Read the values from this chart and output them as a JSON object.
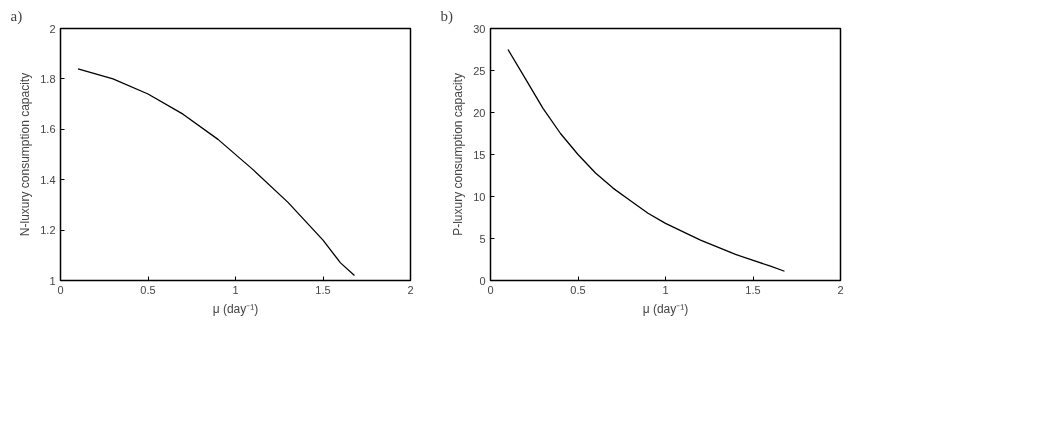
{
  "chart_data": [
    {
      "type": "line",
      "title": "a)",
      "xlabel": "μ (day⁻¹)",
      "ylabel": "N-luxury consumption capacity",
      "xlim": [
        0,
        2
      ],
      "xticks": [
        0,
        0.5,
        1,
        1.5,
        2
      ],
      "ylim": [
        1,
        2
      ],
      "yticks": [
        1,
        1.2,
        1.4,
        1.6,
        1.8,
        2
      ],
      "grid": false,
      "series": [
        {
          "color": "#000000",
          "x": [
            0.1,
            0.3,
            0.5,
            0.7,
            0.9,
            1.1,
            1.3,
            1.5,
            1.6,
            1.68
          ],
          "values": [
            1.84,
            1.8,
            1.74,
            1.66,
            1.56,
            1.44,
            1.31,
            1.16,
            1.07,
            1.02
          ]
        }
      ]
    },
    {
      "type": "line",
      "title": "b)",
      "xlabel": "μ (day⁻¹)",
      "ylabel": "P-luxury consumption capacity",
      "xlim": [
        0,
        2
      ],
      "xticks": [
        0,
        0.5,
        1,
        1.5,
        2
      ],
      "ylim": [
        0,
        30
      ],
      "yticks": [
        0,
        5,
        10,
        15,
        20,
        25,
        30
      ],
      "grid": false,
      "series": [
        {
          "color": "#000000",
          "x": [
            0.1,
            0.2,
            0.3,
            0.4,
            0.5,
            0.6,
            0.7,
            0.8,
            0.9,
            1.0,
            1.2,
            1.4,
            1.6,
            1.68
          ],
          "values": [
            27.5,
            24,
            20.5,
            17.5,
            15,
            12.8,
            11,
            9.5,
            8,
            6.8,
            4.8,
            3.1,
            1.7,
            1.1
          ]
        }
      ]
    }
  ]
}
